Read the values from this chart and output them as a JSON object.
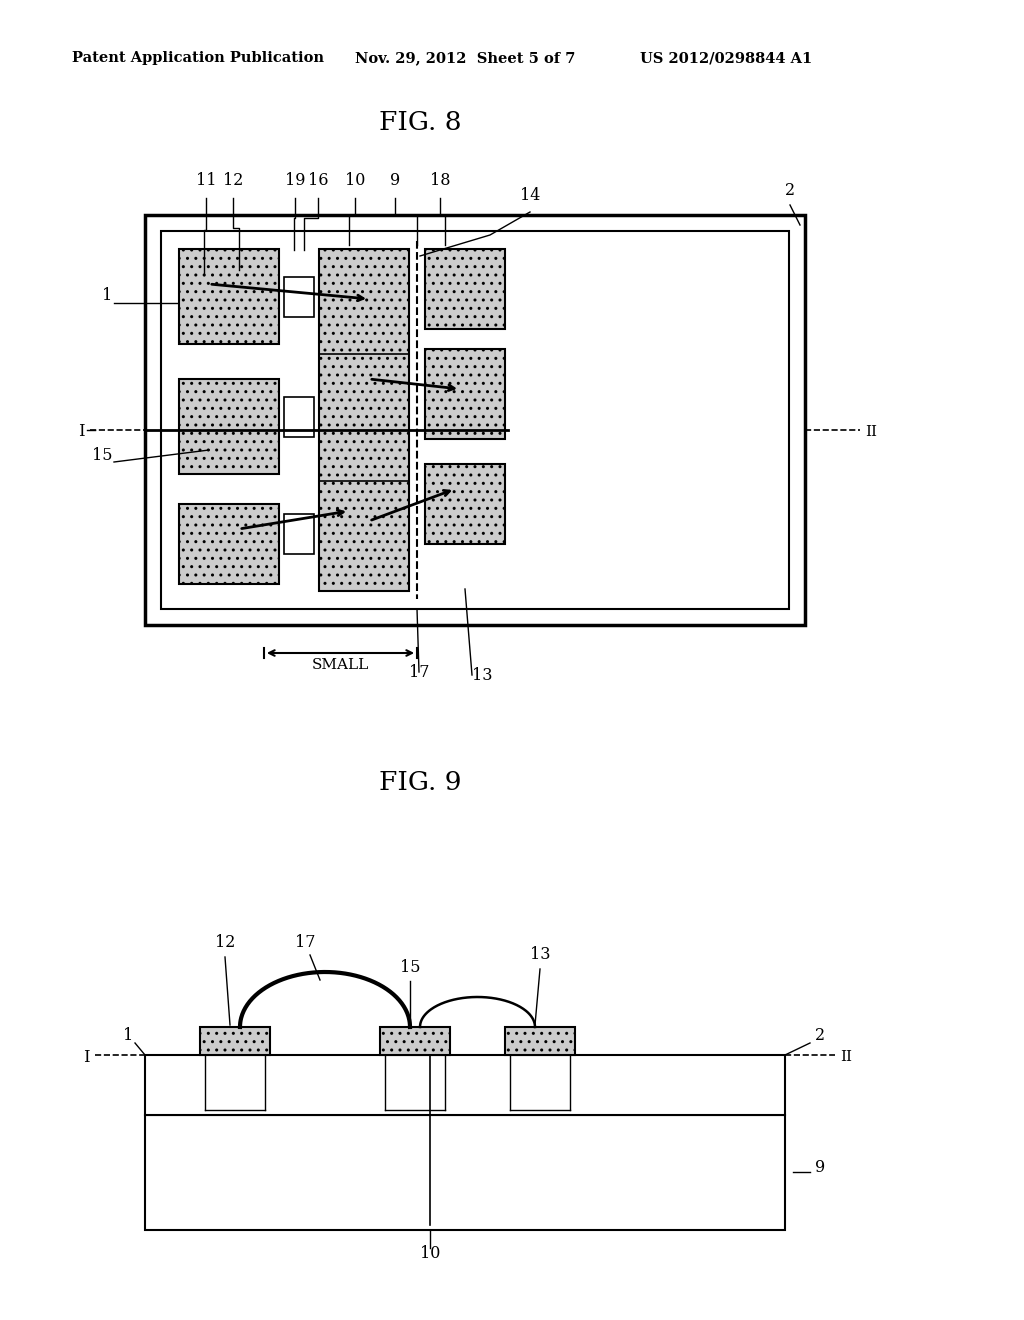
{
  "header_left": "Patent Application Publication",
  "header_mid": "Nov. 29, 2012  Sheet 5 of 7",
  "header_right": "US 2012/0298844 A1",
  "fig8_title": "FIG. 8",
  "fig9_title": "FIG. 9",
  "bg_color": "#ffffff",
  "line_color": "#000000"
}
